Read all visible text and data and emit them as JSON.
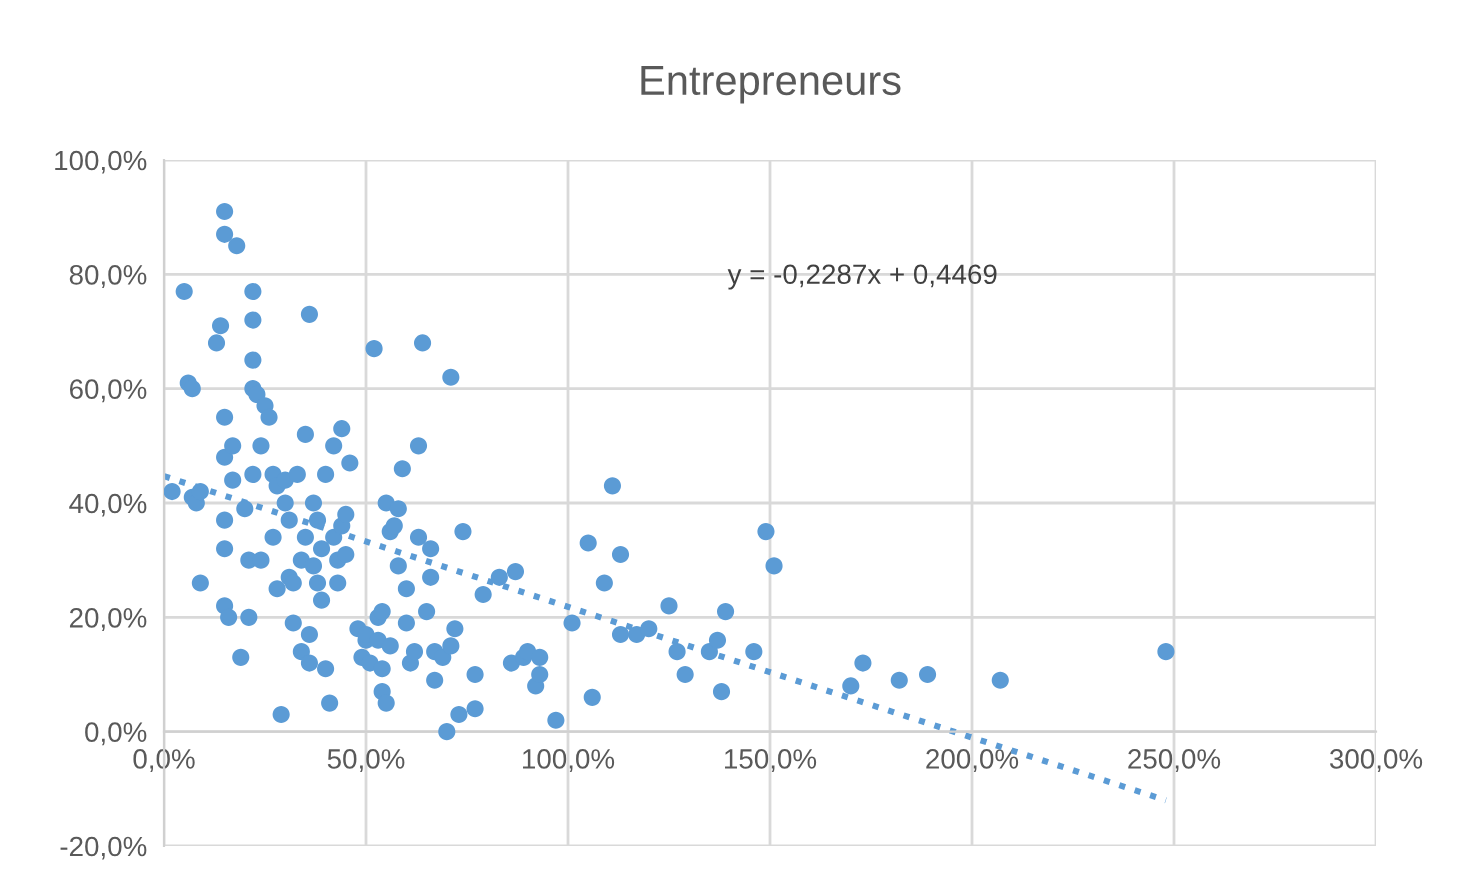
{
  "chart_data": {
    "type": "scatter",
    "title": "Entrepreneurs",
    "annotations": [
      "y = -0,2287x + 0,4469"
    ],
    "x": [
      2,
      5,
      6,
      7,
      7,
      8,
      9,
      9,
      13,
      14,
      15,
      15,
      15,
      15,
      15,
      15,
      15,
      16,
      17,
      17,
      18,
      19,
      20,
      21,
      21,
      22,
      22,
      22,
      22,
      22,
      23,
      24,
      24,
      25,
      26,
      27,
      27,
      28,
      28,
      29,
      30,
      30,
      31,
      31,
      32,
      32,
      33,
      34,
      34,
      35,
      35,
      36,
      36,
      36,
      37,
      37,
      38,
      38,
      39,
      39,
      40,
      40,
      41,
      42,
      42,
      43,
      43,
      44,
      44,
      45,
      45,
      46,
      48,
      49,
      50,
      50,
      51,
      52,
      53,
      53,
      54,
      54,
      54,
      55,
      55,
      56,
      56,
      57,
      58,
      58,
      59,
      60,
      60,
      61,
      62,
      63,
      63,
      64,
      65,
      66,
      66,
      67,
      67,
      69,
      70,
      71,
      71,
      72,
      73,
      74,
      77,
      77,
      79,
      83,
      86,
      87,
      89,
      90,
      92,
      93,
      93,
      97,
      101,
      105,
      106,
      109,
      111,
      113,
      113,
      117,
      120,
      125,
      127,
      129,
      135,
      137,
      138,
      139,
      146,
      149,
      151,
      170,
      173,
      182,
      189,
      207,
      248
    ],
    "series": [
      {
        "color": "#5b9bd5",
        "marker": "circle",
        "values": [
          42,
          77,
          61,
          60,
          41,
          40,
          42,
          26,
          68,
          71,
          91,
          87,
          55,
          48,
          37,
          32,
          22,
          20,
          50,
          44,
          85,
          13,
          39,
          30,
          20,
          65,
          72,
          77,
          60,
          45,
          59,
          50,
          30,
          57,
          55,
          45,
          34,
          43,
          25,
          3,
          44,
          40,
          37,
          27,
          26,
          19,
          45,
          30,
          14,
          52,
          34,
          73,
          17,
          12,
          29,
          40,
          37,
          26,
          32,
          23,
          45,
          11,
          5,
          50,
          34,
          30,
          26,
          53,
          36,
          38,
          31,
          47,
          18,
          13,
          16,
          17,
          12,
          67,
          20,
          16,
          21,
          11,
          7,
          40,
          5,
          35,
          15,
          36,
          39,
          29,
          46,
          25,
          19,
          12,
          14,
          34,
          50,
          68,
          21,
          32,
          27,
          9,
          14,
          13,
          0,
          62,
          15,
          18,
          3,
          35,
          10,
          4,
          24,
          27,
          12,
          28,
          13,
          14,
          8,
          10,
          13,
          2,
          19,
          33,
          6,
          26,
          43,
          31,
          17,
          17,
          18,
          22,
          14,
          10,
          14,
          16,
          7,
          21,
          14,
          35,
          29,
          8,
          12,
          9,
          10,
          9,
          14
        ]
      },
      {
        "type": "line",
        "color": "#5b9bd5",
        "line_style": "dotted",
        "marker": "none",
        "x": [
          0,
          248
        ],
        "values": [
          44.7,
          -12.0
        ]
      }
    ],
    "xlim": [
      0,
      300
    ],
    "ylim": [
      -20,
      100
    ],
    "xticks": [
      {
        "value": 0,
        "label": "0,0%"
      },
      {
        "value": 50,
        "label": "50,0%"
      },
      {
        "value": 100,
        "label": "100,0%"
      },
      {
        "value": 150,
        "label": "150,0%"
      },
      {
        "value": 200,
        "label": "200,0%"
      },
      {
        "value": 250,
        "label": "250,0%"
      },
      {
        "value": 300,
        "label": "300,0%"
      }
    ],
    "yticks": [
      {
        "value": -20,
        "label": "-20,0%"
      },
      {
        "value": 0,
        "label": "0,0%"
      },
      {
        "value": 20,
        "label": "20,0%"
      },
      {
        "value": 40,
        "label": "40,0%"
      },
      {
        "value": 60,
        "label": "60,0%"
      },
      {
        "value": 80,
        "label": "80,0%"
      },
      {
        "value": 100,
        "label": "100,0%"
      }
    ],
    "grid": true,
    "legend": false
  }
}
